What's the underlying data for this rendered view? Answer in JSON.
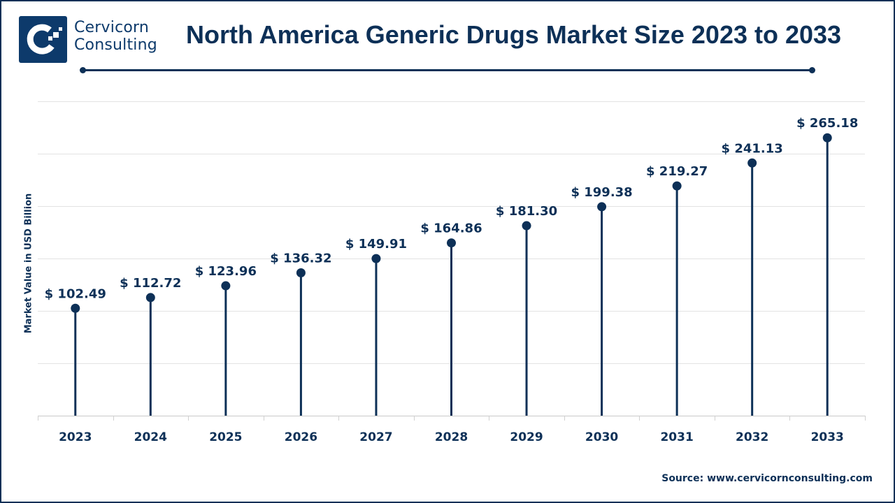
{
  "brand": {
    "name_line1": "Cervicorn",
    "name_line2": "Consulting",
    "logo_icon": "cervicorn-c-logo-icon"
  },
  "colors": {
    "primary": "#0d3057",
    "logo_bg": "#0d3a6b",
    "gridline": "#e3e3e3",
    "axis": "#d0d0d0"
  },
  "chart_data": {
    "type": "lollipop",
    "title": "North America Generic Drugs Market Size 2023 to 2033",
    "xlabel": "",
    "ylabel": "Market Value in USD Billion",
    "categories": [
      "2023",
      "2024",
      "2025",
      "2026",
      "2027",
      "2028",
      "2029",
      "2030",
      "2031",
      "2032",
      "2033"
    ],
    "values": [
      102.49,
      112.72,
      123.96,
      136.32,
      149.91,
      164.86,
      181.3,
      199.38,
      219.27,
      241.13,
      265.18
    ],
    "data_labels": [
      "$ 102.49",
      "$ 112.72",
      "$ 123.96",
      "$ 136.32",
      "$ 149.91",
      "$ 164.86",
      "$ 181.30",
      "$ 199.38",
      "$ 219.27",
      "$ 241.13",
      "$ 265.18"
    ],
    "ylim": [
      0,
      300
    ],
    "ygrid_step": 50,
    "grid": true,
    "y_tick_labels_shown": false,
    "legend": "none",
    "source": "Source: www.cervicornconsulting.com"
  }
}
